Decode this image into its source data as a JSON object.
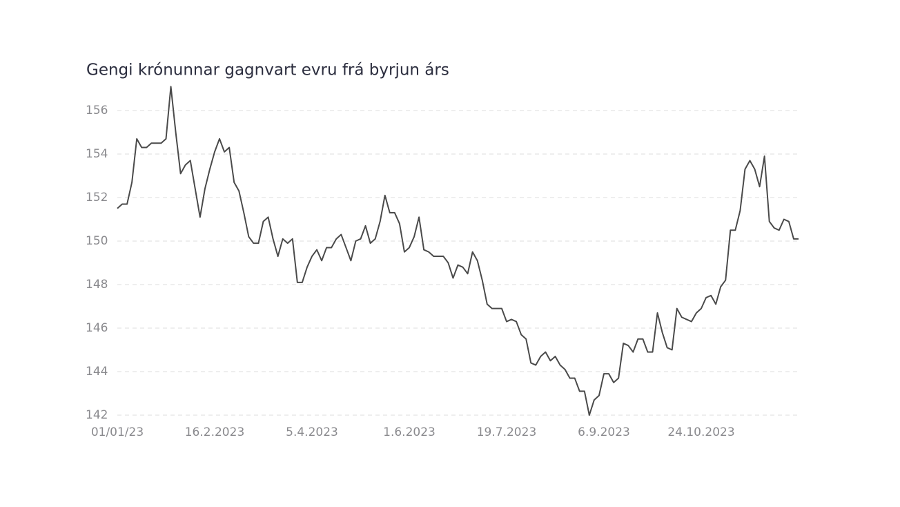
{
  "chart_data": {
    "type": "line",
    "title": "Gengi krónunnar gagnvart evru frá byrjun árs",
    "categories": [
      "01/01/23",
      null,
      null,
      null,
      null,
      null,
      null,
      null,
      null,
      null,
      null,
      null,
      null,
      null,
      null,
      null,
      null,
      null,
      null,
      null,
      "16.2.2023",
      null,
      null,
      null,
      null,
      null,
      null,
      null,
      null,
      null,
      null,
      null,
      null,
      null,
      null,
      null,
      null,
      null,
      null,
      null,
      "5.4.2023",
      null,
      null,
      null,
      null,
      null,
      null,
      null,
      null,
      null,
      null,
      null,
      null,
      null,
      null,
      null,
      null,
      null,
      null,
      null,
      "1.6.2023",
      null,
      null,
      null,
      null,
      null,
      null,
      null,
      null,
      null,
      null,
      null,
      null,
      null,
      null,
      null,
      null,
      null,
      null,
      null,
      "19.7.2023",
      null,
      null,
      null,
      null,
      null,
      null,
      null,
      null,
      null,
      null,
      null,
      null,
      null,
      null,
      null,
      null,
      null,
      null,
      null,
      "6.9.2023",
      null,
      null,
      null,
      null,
      null,
      null,
      null,
      null,
      null,
      null,
      null,
      null,
      null,
      null,
      null,
      null,
      null,
      null,
      null,
      "24.10.2023",
      null,
      null,
      null,
      null,
      null,
      null,
      null,
      null,
      null,
      null,
      null,
      null,
      null,
      null,
      null,
      null,
      null,
      null,
      null,
      null
    ],
    "values": [
      151.5,
      151.7,
      151.7,
      152.7,
      154.7,
      154.3,
      154.3,
      154.5,
      154.5,
      154.5,
      154.7,
      157.1,
      155.0,
      153.1,
      153.5,
      153.7,
      152.4,
      151.1,
      152.4,
      153.3,
      154.1,
      154.7,
      154.1,
      154.3,
      152.7,
      152.3,
      151.3,
      150.2,
      149.9,
      149.9,
      150.9,
      151.1,
      150.1,
      149.3,
      150.1,
      149.9,
      150.1,
      148.1,
      148.1,
      148.8,
      149.3,
      149.6,
      149.1,
      149.7,
      149.7,
      150.1,
      150.3,
      149.7,
      149.1,
      150.0,
      150.1,
      150.7,
      149.9,
      150.1,
      150.9,
      152.1,
      151.3,
      151.3,
      150.8,
      149.5,
      149.7,
      150.2,
      151.1,
      149.6,
      149.5,
      149.3,
      149.3,
      149.3,
      149.0,
      148.3,
      148.9,
      148.8,
      148.5,
      149.5,
      149.1,
      148.2,
      147.1,
      146.9,
      146.9,
      146.9,
      146.3,
      146.4,
      146.3,
      145.7,
      145.5,
      144.4,
      144.3,
      144.7,
      144.9,
      144.5,
      144.7,
      144.3,
      144.1,
      143.7,
      143.7,
      143.1,
      143.1,
      142.0,
      142.7,
      142.9,
      143.9,
      143.9,
      143.5,
      143.7,
      145.3,
      145.2,
      144.9,
      145.5,
      145.5,
      144.9,
      144.9,
      146.7,
      145.8,
      145.1,
      145.0,
      146.9,
      146.5,
      146.4,
      146.3,
      146.7,
      146.9,
      147.4,
      147.5,
      147.1,
      147.9,
      148.2,
      150.5,
      150.5,
      151.4,
      153.3,
      153.7,
      153.3,
      152.5,
      153.9,
      150.9,
      150.6,
      150.5,
      151.0,
      150.9,
      150.1,
      150.1
    ],
    "color": "#4a4a4a",
    "ylim": [
      142,
      156
    ],
    "yticks": [
      142,
      144,
      146,
      148,
      150,
      152,
      154,
      156
    ],
    "grid": true
  }
}
